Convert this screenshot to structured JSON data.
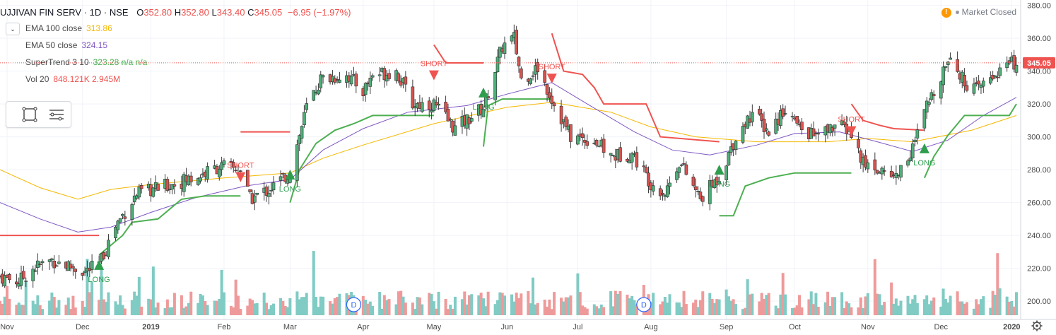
{
  "header": {
    "symbol": "UJJIVAN FIN SERV · 1D · NSE",
    "open_label": "O",
    "open": "352.80",
    "high_label": "H",
    "high": "352.80",
    "low_label": "L",
    "low": "343.40",
    "close_label": "C",
    "close": "345.05",
    "change": "−6.95 (−1.97%)"
  },
  "market_status": {
    "alert": "!",
    "text": "Market Closed"
  },
  "indicators": [
    {
      "name": "EMA 100 close",
      "value": "313.86",
      "color": "#f5b800"
    },
    {
      "name": "EMA 50 close",
      "value": "324.15",
      "color": "#7e57c2"
    },
    {
      "name": "SuperTrend 3 10",
      "value": "323.28  n/a  n/a",
      "color": "#4caf50"
    },
    {
      "name": "Vol 20",
      "value": "848.121K  2.945M",
      "color": "#ef5350"
    }
  ],
  "collapse_icon": "chevron-down-icon",
  "toolbox": {
    "icons": [
      "rectangle-select-icon",
      "list-settings-icon"
    ]
  },
  "colors": {
    "up": "#26a69a",
    "up_body": "#4caf78",
    "down": "#ef5350",
    "down_body": "#d9534f",
    "ema100": "#f5b800",
    "ema50": "#7e57c2",
    "st_up": "#4caf50",
    "st_down": "#ef5350",
    "vol_up": "#80cbc4",
    "vol_down": "#ef9a9a",
    "price_line": "#ef5350",
    "grid": "#f0f3fa"
  },
  "chart_data": {
    "type": "candlestick",
    "y_ticks": [
      "380.00",
      "360.00",
      "340.00",
      "320.00",
      "300.00",
      "280.00",
      "260.00",
      "240.00",
      "220.00",
      "200.00"
    ],
    "ylim": [
      197,
      382
    ],
    "last_price": "345.05",
    "x_labels": [
      "Nov",
      "Dec",
      "2019",
      "Feb",
      "Mar",
      "Apr",
      "May",
      "Jun",
      "Jul",
      "Aug",
      "Sep",
      "Oct",
      "Nov",
      "Dec",
      "2020"
    ],
    "signals": [
      {
        "type": "LONG",
        "date": "2018-12-10",
        "price": 222
      },
      {
        "type": "SHORT",
        "date": "2019-02-08",
        "price": 275
      },
      {
        "type": "LONG",
        "date": "2019-03-01",
        "price": 277
      },
      {
        "type": "SHORT",
        "date": "2019-05-01",
        "price": 337
      },
      {
        "type": "LONG",
        "date": "2019-05-22",
        "price": 327
      },
      {
        "type": "SHORT",
        "date": "2019-06-20",
        "price": 335
      },
      {
        "type": "LONG",
        "date": "2019-08-30",
        "price": 280
      },
      {
        "type": "SHORT",
        "date": "2019-10-25",
        "price": 303
      },
      {
        "type": "LONG",
        "date": "2019-11-25",
        "price": 293
      }
    ],
    "event_markers": [
      {
        "label": "D",
        "date": "2019-03-28"
      },
      {
        "label": "D",
        "date": "2019-07-29"
      }
    ],
    "supertrend_segments": [
      {
        "trend": "down",
        "points": [
          [
            "2018-10-29",
            240
          ],
          [
            "2018-12-10",
            240
          ]
        ]
      },
      {
        "trend": "up",
        "points": [
          [
            "2018-12-10",
            228
          ],
          [
            "2018-12-20",
            240
          ],
          [
            "2018-12-24",
            248
          ],
          [
            "2019-01-04",
            250
          ],
          [
            "2019-01-14",
            262
          ],
          [
            "2019-01-24",
            264
          ],
          [
            "2019-02-08",
            264
          ]
        ]
      },
      {
        "trend": "down",
        "points": [
          [
            "2019-02-08",
            303
          ],
          [
            "2019-03-01",
            303
          ]
        ]
      },
      {
        "trend": "up",
        "points": [
          [
            "2019-03-01",
            260
          ],
          [
            "2019-03-05",
            280
          ],
          [
            "2019-03-12",
            296
          ],
          [
            "2019-03-20",
            304
          ],
          [
            "2019-03-28",
            308
          ],
          [
            "2019-04-05",
            313
          ],
          [
            "2019-05-01",
            313
          ]
        ]
      },
      {
        "trend": "down",
        "points": [
          [
            "2019-05-01",
            356
          ],
          [
            "2019-05-06",
            345
          ],
          [
            "2019-05-22",
            345
          ]
        ]
      },
      {
        "trend": "up",
        "points": [
          [
            "2019-05-22",
            294
          ],
          [
            "2019-05-24",
            319
          ],
          [
            "2019-05-30",
            323
          ],
          [
            "2019-06-20",
            323
          ]
        ]
      },
      {
        "trend": "down",
        "points": [
          [
            "2019-06-20",
            363
          ],
          [
            "2019-06-25",
            340
          ],
          [
            "2019-07-03",
            338
          ],
          [
            "2019-07-08",
            330
          ],
          [
            "2019-07-12",
            320
          ],
          [
            "2019-07-30",
            320
          ],
          [
            "2019-08-05",
            300
          ],
          [
            "2019-08-30",
            297
          ]
        ]
      },
      {
        "trend": "up",
        "points": [
          [
            "2019-08-30",
            252
          ],
          [
            "2019-09-05",
            252
          ],
          [
            "2019-09-10",
            270
          ],
          [
            "2019-09-20",
            275
          ],
          [
            "2019-10-01",
            278
          ],
          [
            "2019-10-25",
            278
          ]
        ]
      },
      {
        "trend": "down",
        "points": [
          [
            "2019-10-25",
            320
          ],
          [
            "2019-10-30",
            310
          ],
          [
            "2019-11-06",
            307
          ],
          [
            "2019-11-12",
            305
          ],
          [
            "2019-11-25",
            304
          ]
        ]
      },
      {
        "trend": "up",
        "points": [
          [
            "2019-11-25",
            275
          ],
          [
            "2019-11-29",
            288
          ],
          [
            "2019-12-05",
            301
          ],
          [
            "2019-12-12",
            313
          ],
          [
            "2019-12-24",
            313
          ],
          [
            "2019-12-31",
            313
          ],
          [
            "2020-01-03",
            320
          ]
        ]
      }
    ],
    "ema100": [
      [
        "2018-10-29",
        280
      ],
      [
        "2018-11-15",
        269
      ],
      [
        "2018-12-01",
        262
      ],
      [
        "2018-12-15",
        268
      ],
      [
        "2019-01-01",
        271
      ],
      [
        "2019-02-01",
        275
      ],
      [
        "2019-03-01",
        278
      ],
      [
        "2019-03-15",
        287
      ],
      [
        "2019-04-01",
        295
      ],
      [
        "2019-05-01",
        308
      ],
      [
        "2019-06-01",
        318
      ],
      [
        "2019-06-20",
        321
      ],
      [
        "2019-07-15",
        315
      ],
      [
        "2019-08-01",
        306
      ],
      [
        "2019-08-20",
        300
      ],
      [
        "2019-09-15",
        297
      ],
      [
        "2019-10-15",
        297
      ],
      [
        "2019-11-01",
        299
      ],
      [
        "2019-11-20",
        297
      ],
      [
        "2019-12-15",
        304
      ],
      [
        "2020-01-03",
        313
      ]
    ],
    "ema50": [
      [
        "2018-10-29",
        260
      ],
      [
        "2018-11-15",
        250
      ],
      [
        "2018-12-01",
        242
      ],
      [
        "2018-12-15",
        245
      ],
      [
        "2019-01-01",
        254
      ],
      [
        "2019-01-20",
        263
      ],
      [
        "2019-02-10",
        270
      ],
      [
        "2019-03-01",
        274
      ],
      [
        "2019-03-15",
        292
      ],
      [
        "2019-04-01",
        305
      ],
      [
        "2019-04-20",
        315
      ],
      [
        "2019-05-15",
        319
      ],
      [
        "2019-06-01",
        326
      ],
      [
        "2019-06-20",
        333
      ],
      [
        "2019-07-05",
        320
      ],
      [
        "2019-07-25",
        303
      ],
      [
        "2019-08-10",
        292
      ],
      [
        "2019-08-26",
        289
      ],
      [
        "2019-09-15",
        295
      ],
      [
        "2019-10-01",
        302
      ],
      [
        "2019-10-20",
        303
      ],
      [
        "2019-11-05",
        297
      ],
      [
        "2019-11-20",
        291
      ],
      [
        "2019-12-05",
        298
      ],
      [
        "2019-12-20",
        313
      ],
      [
        "2020-01-03",
        324
      ]
    ],
    "close_path": [
      [
        "2018-10-29",
        215
      ],
      [
        "2018-11-06",
        212
      ],
      [
        "2018-11-12",
        220
      ],
      [
        "2018-11-20",
        225
      ],
      [
        "2018-12-04",
        218
      ],
      [
        "2018-12-10",
        222
      ],
      [
        "2018-12-17",
        246
      ],
      [
        "2018-12-26",
        265
      ],
      [
        "2019-01-07",
        270
      ],
      [
        "2019-01-21",
        276
      ],
      [
        "2019-01-30",
        282
      ],
      [
        "2019-02-08",
        280
      ],
      [
        "2019-02-12",
        262
      ],
      [
        "2019-02-20",
        268
      ],
      [
        "2019-03-01",
        278
      ],
      [
        "2019-03-08",
        318
      ],
      [
        "2019-03-14",
        335
      ],
      [
        "2019-03-25",
        338
      ],
      [
        "2019-04-01",
        328
      ],
      [
        "2019-04-05",
        338
      ],
      [
        "2019-04-15",
        340
      ],
      [
        "2019-04-22",
        320
      ],
      [
        "2019-05-01",
        320
      ],
      [
        "2019-05-10",
        305
      ],
      [
        "2019-05-22",
        318
      ],
      [
        "2019-05-30",
        355
      ],
      [
        "2019-06-04",
        360
      ],
      [
        "2019-06-07",
        335
      ],
      [
        "2019-06-14",
        342
      ],
      [
        "2019-06-21",
        320
      ],
      [
        "2019-06-28",
        300
      ],
      [
        "2019-07-08",
        298
      ],
      [
        "2019-07-15",
        288
      ],
      [
        "2019-07-24",
        290
      ],
      [
        "2019-08-01",
        272
      ],
      [
        "2019-08-07",
        266
      ],
      [
        "2019-08-13",
        285
      ],
      [
        "2019-08-22",
        262
      ],
      [
        "2019-08-30",
        276
      ],
      [
        "2019-09-06",
        300
      ],
      [
        "2019-09-13",
        315
      ],
      [
        "2019-09-20",
        303
      ],
      [
        "2019-09-27",
        318
      ],
      [
        "2019-10-03",
        305
      ],
      [
        "2019-10-11",
        300
      ],
      [
        "2019-10-18",
        307
      ],
      [
        "2019-10-24",
        304
      ],
      [
        "2019-10-30",
        284
      ],
      [
        "2019-11-06",
        280
      ],
      [
        "2019-11-13",
        276
      ],
      [
        "2019-11-20",
        293
      ],
      [
        "2019-11-26",
        318
      ],
      [
        "2019-12-02",
        338
      ],
      [
        "2019-12-06",
        352
      ],
      [
        "2019-12-11",
        335
      ],
      [
        "2019-12-17",
        328
      ],
      [
        "2019-12-23",
        336
      ],
      [
        "2019-12-30",
        344
      ],
      [
        "2020-01-03",
        345
      ]
    ],
    "volume_ylim": [
      0,
      4.0
    ]
  }
}
